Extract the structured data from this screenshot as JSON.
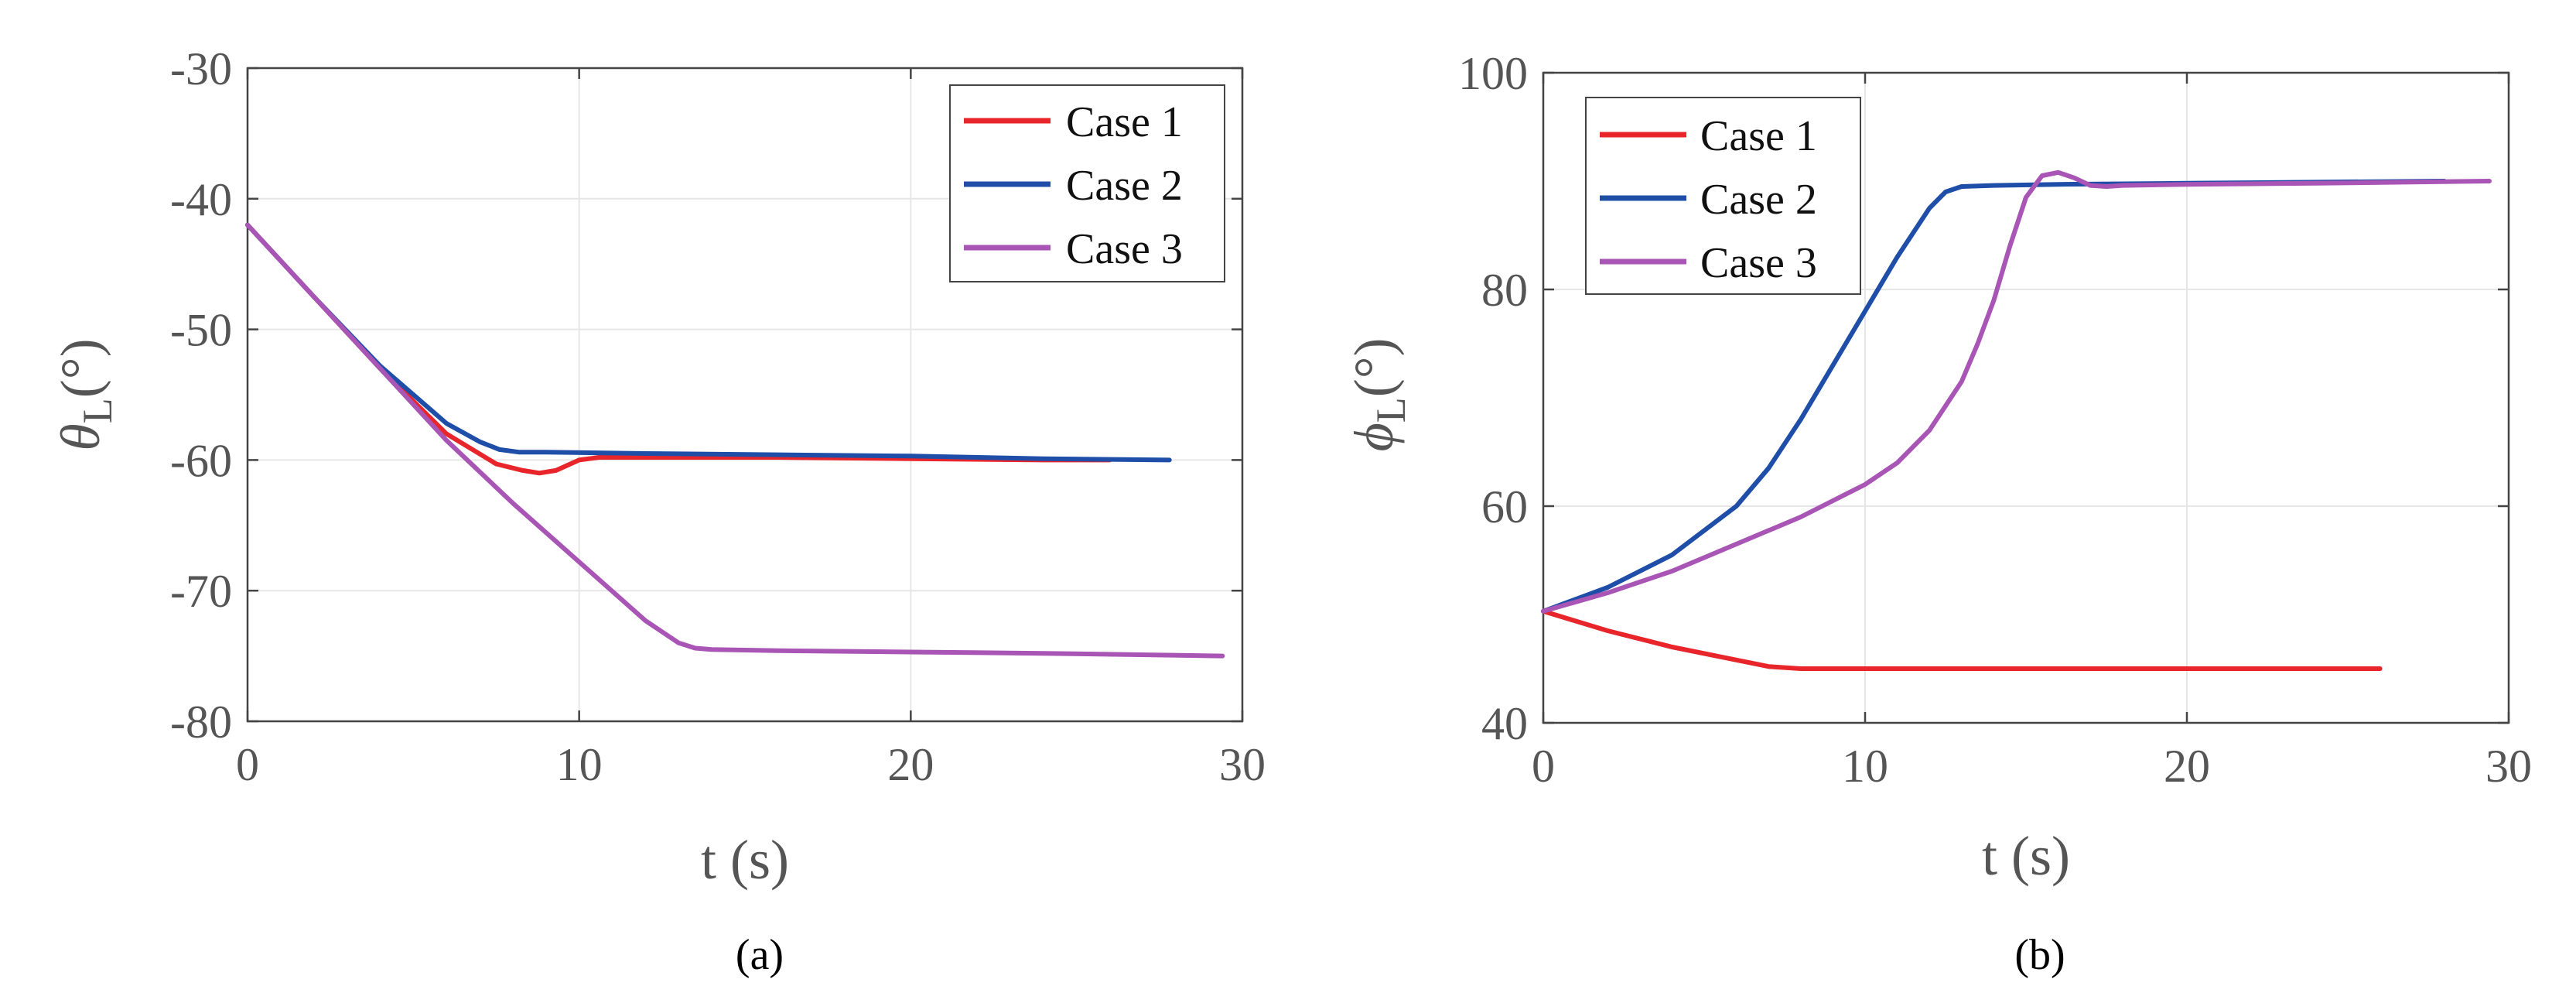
{
  "colors": {
    "case1": "#e8252a",
    "case2": "#1f4ea8",
    "case3": "#a855b5",
    "axis": "#444444",
    "grid": "#e6e6e6"
  },
  "chart_data": [
    {
      "type": "line",
      "caption": "(a)",
      "xlabel": "t (s)",
      "ylabel_symbol": "θ",
      "ylabel_sub": "L",
      "ylabel_unit": "(°)",
      "xlim": [
        0,
        30
      ],
      "ylim": [
        -80,
        -30
      ],
      "xticks": [
        0,
        10,
        20,
        30
      ],
      "yticks": [
        -80,
        -70,
        -60,
        -50,
        -40,
        -30
      ],
      "legend": "top-right",
      "series": [
        {
          "name": "Case 1",
          "color": "#e8252a",
          "x": [
            0,
            2,
            4,
            6,
            7.5,
            8.3,
            8.8,
            9.3,
            10,
            10.6,
            12,
            16,
            20,
            24,
            26
          ],
          "y": [
            -42,
            -47.5,
            -53,
            -58,
            -60.3,
            -60.8,
            -61.0,
            -60.8,
            -60.0,
            -59.8,
            -59.8,
            -59.8,
            -59.9,
            -60.0,
            -60.0
          ]
        },
        {
          "name": "Case 2",
          "color": "#1f4ea8",
          "x": [
            0,
            2,
            4,
            6,
            7,
            7.6,
            8.2,
            9,
            12,
            16,
            20,
            24,
            27.8
          ],
          "y": [
            -42,
            -47.5,
            -52.8,
            -57.2,
            -58.6,
            -59.2,
            -59.4,
            -59.4,
            -59.5,
            -59.6,
            -59.7,
            -59.9,
            -60.0
          ]
        },
        {
          "name": "Case 3",
          "color": "#a855b5",
          "x": [
            0,
            2,
            4,
            6,
            8,
            10,
            12,
            13,
            13.5,
            14,
            16,
            20,
            24,
            29.4
          ],
          "y": [
            -42,
            -47.5,
            -53,
            -58.5,
            -63.3,
            -67.8,
            -72.3,
            -74.0,
            -74.4,
            -74.5,
            -74.6,
            -74.7,
            -74.8,
            -75.0
          ]
        }
      ]
    },
    {
      "type": "line",
      "caption": "(b)",
      "xlabel": "t (s)",
      "ylabel_symbol": "ϕ",
      "ylabel_sub": "L",
      "ylabel_unit": "(°)",
      "xlim": [
        0,
        30
      ],
      "ylim": [
        40,
        100
      ],
      "xticks": [
        0,
        10,
        20,
        30
      ],
      "yticks": [
        40,
        60,
        80,
        100
      ],
      "legend": "top-left",
      "series": [
        {
          "name": "Case 1",
          "color": "#e8252a",
          "x": [
            0,
            2,
            4,
            6,
            7,
            8,
            12,
            16,
            20,
            24,
            26
          ],
          "y": [
            50.3,
            48.5,
            47,
            45.8,
            45.2,
            45.0,
            45.0,
            45.0,
            45.0,
            45.0,
            45.0
          ]
        },
        {
          "name": "Case 2",
          "color": "#1f4ea8",
          "x": [
            0,
            2,
            4,
            6,
            7,
            8,
            9,
            10,
            11,
            12,
            12.5,
            13,
            14,
            16,
            20,
            24,
            28
          ],
          "y": [
            50.3,
            52.5,
            55.5,
            60,
            63.5,
            68,
            73,
            78,
            83,
            87.5,
            89,
            89.5,
            89.6,
            89.7,
            89.8,
            89.9,
            90.0
          ]
        },
        {
          "name": "Case 3",
          "color": "#a855b5",
          "x": [
            0,
            2,
            4,
            6,
            8,
            10,
            11,
            12,
            13,
            13.5,
            14,
            14.5,
            15,
            15.5,
            16,
            16.5,
            17,
            17.5,
            18,
            20,
            24,
            29.4
          ],
          "y": [
            50.3,
            52,
            54,
            56.5,
            59,
            62,
            64,
            67,
            71.5,
            75,
            79,
            84,
            88.5,
            90.5,
            90.8,
            90.3,
            89.6,
            89.5,
            89.6,
            89.7,
            89.8,
            90.0
          ]
        }
      ]
    }
  ]
}
